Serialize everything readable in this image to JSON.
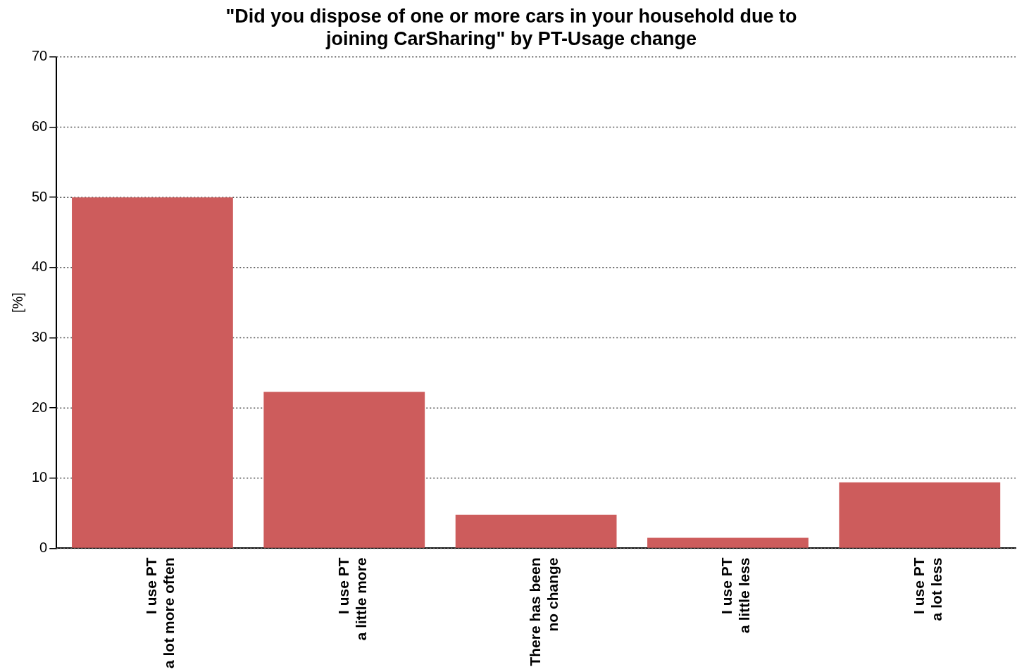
{
  "chart_data": {
    "type": "bar",
    "title": "\"Did you dispose of one or more cars in your household due to\njoining CarSharing\" by PT-Usage change",
    "ylabel": "[%]",
    "categories": [
      "I use PT\na lot more often",
      "I use PT\na little more",
      "There has been\nno change",
      "I use PT\na little less",
      "I use PT\na lot less"
    ],
    "values": [
      50,
      22.3,
      4.8,
      1.5,
      9.4
    ],
    "color": "#cd5c5c",
    "ylim": [
      0,
      70
    ],
    "yticks": [
      0,
      10,
      20,
      30,
      40,
      50,
      60,
      70
    ],
    "grid": "y",
    "line_style": "dotted"
  }
}
